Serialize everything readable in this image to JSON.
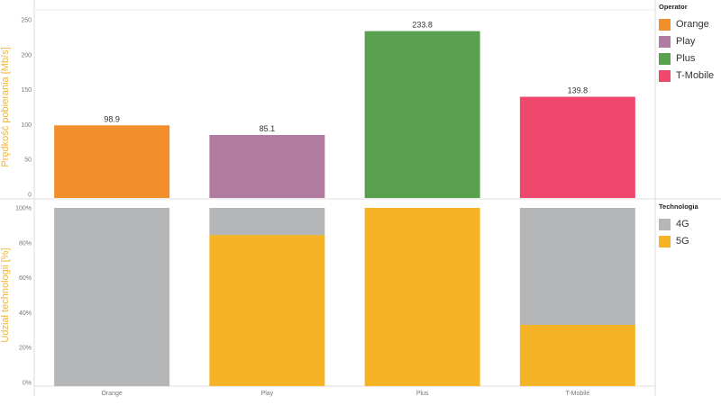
{
  "chart_data": [
    {
      "type": "bar",
      "ylabel": "Prędkość pobierania [Mb/s]",
      "categories": [
        "Orange",
        "Play",
        "Plus",
        "T-Mobile"
      ],
      "values": [
        98.9,
        85.1,
        233.8,
        139.8
      ],
      "value_labels": [
        "98.9",
        "85.1",
        "233.8",
        "139.8"
      ],
      "colors": [
        "#f28e2c",
        "#b07aa1",
        "#59a14f",
        "#f0476d"
      ],
      "ylim": [
        0,
        250
      ],
      "yticks": [
        0,
        50,
        100,
        150,
        200,
        250
      ],
      "grid": false
    },
    {
      "type": "bar",
      "stacked": true,
      "ylabel": "Udział technologii [%]",
      "categories": [
        "Orange",
        "Play",
        "Plus",
        "T-Mobile"
      ],
      "series": [
        {
          "name": "5G",
          "values": [
            0,
            84.5,
            100,
            33
          ],
          "color": "#f5b325"
        },
        {
          "name": "4G",
          "values": [
            100,
            15.5,
            0,
            67
          ],
          "color": "#b4b6b7"
        }
      ],
      "ylim": [
        0,
        100
      ],
      "yticks": [
        "0%",
        "20%",
        "40%",
        "60%",
        "80%",
        "100%"
      ],
      "grid": false
    }
  ],
  "legend_operator": {
    "title": "Operator",
    "items": [
      {
        "label": "Orange",
        "color": "#f28e2c"
      },
      {
        "label": "Play",
        "color": "#b07aa1"
      },
      {
        "label": "Plus",
        "color": "#59a14f"
      },
      {
        "label": "T-Mobile",
        "color": "#f0476d"
      }
    ]
  },
  "legend_tech": {
    "title": "Technologia",
    "items": [
      {
        "label": "4G",
        "color": "#b4b6b7"
      },
      {
        "label": "5G",
        "color": "#f5b325"
      }
    ]
  }
}
